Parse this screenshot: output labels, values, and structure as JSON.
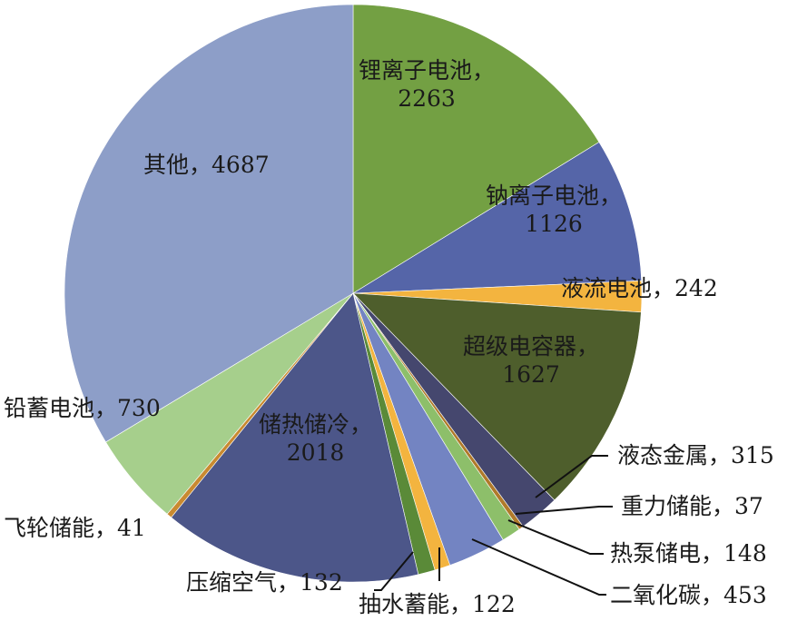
{
  "chart_data": {
    "type": "pie",
    "start_angle": "12 o'clock",
    "direction": "clockwise",
    "slices": [
      {
        "label": "锂离子电池",
        "value": 2263,
        "color": "#73a043"
      },
      {
        "label": "钠离子电池",
        "value": 1126,
        "color": "#5565a8"
      },
      {
        "label": "液流电池",
        "value": 242,
        "color": "#f3b43f"
      },
      {
        "label": "超级电容器",
        "value": 1627,
        "color": "#4e5e2c"
      },
      {
        "label": "液态金属",
        "value": 315,
        "color": "#45476e"
      },
      {
        "label": "重力储能",
        "value": 37,
        "color": "#b07a2a"
      },
      {
        "label": "热泵储电",
        "value": 148,
        "color": "#8dbf6a"
      },
      {
        "label": "二氧化碳",
        "value": 453,
        "color": "#7384c2"
      },
      {
        "label": "抽水蓄能",
        "value": 122,
        "color": "#f3b43f"
      },
      {
        "label": "压缩空气",
        "value": 132,
        "color": "#5a8a38"
      },
      {
        "label": "储热储冷",
        "value": 2018,
        "color": "#4c5689"
      },
      {
        "label": "飞轮储能",
        "value": 41,
        "color": "#c98a30"
      },
      {
        "label": "铅蓄电池",
        "value": 730,
        "color": "#a6cf8c"
      },
      {
        "label": "其他",
        "value": 4687,
        "color": "#8d9ec8"
      }
    ],
    "sep": "，"
  }
}
